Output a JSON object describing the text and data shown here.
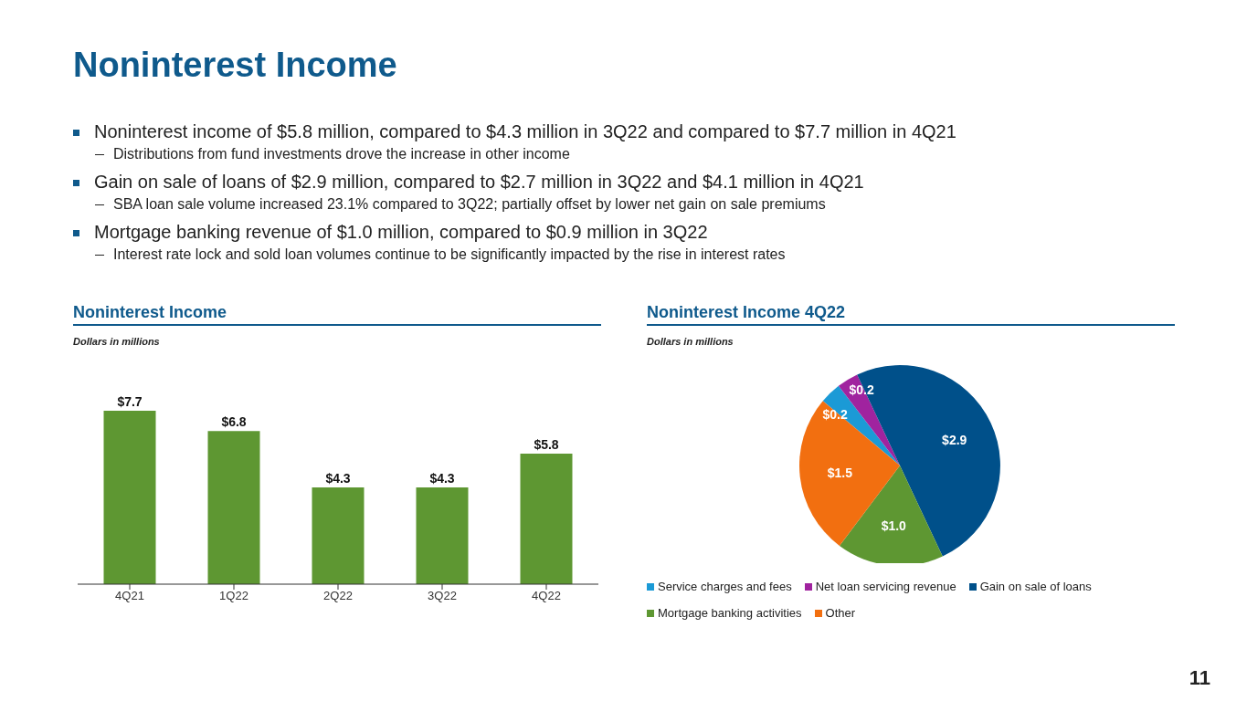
{
  "chart_data": [
    {
      "type": "other",
      "title": "Noninterest Income",
      "annotations": [
        "Noninterest income of $5.8 million, compared to $4.3 million in 3Q22 and compared to $7.7 million in 4Q21",
        "Distributions from fund investments drove the increase in other income",
        "Gain on sale of loans of $2.9 million, compared to $2.7 million in 3Q22 and $4.1 million in 4Q21",
        "SBA loan sale volume increased 23.1% compared to 3Q22; partially offset by lower net gain on sale premiums",
        "Mortgage banking revenue of $1.0 million, compared to $0.9 million in 3Q22",
        "Interest rate lock and sold loan volumes continue to be significantly impacted by the rise in interest rates",
        "11"
      ]
    },
    {
      "type": "bar",
      "title": "Noninterest Income",
      "subtitle": "Dollars in millions",
      "categories": [
        "4Q21",
        "1Q22",
        "2Q22",
        "3Q22",
        "4Q22"
      ],
      "values": [
        7.7,
        6.8,
        4.3,
        4.3,
        5.8
      ],
      "color": "#5e9732",
      "value_labels": [
        "$7.7",
        "$6.8",
        "$4.3",
        "$4.3",
        "$5.8"
      ]
    },
    {
      "type": "pie",
      "title": "Noninterest Income 4Q22",
      "subtitle": "Dollars in millions",
      "categories": [
        "Service charges and fees",
        "Net loan servicing revenue",
        "Gain on sale of loans",
        "Mortgage banking activities",
        "Other"
      ],
      "values": [
        0.2,
        0.2,
        2.9,
        1.0,
        1.5
      ],
      "colors": [
        "#1b9ad6",
        "#a0239f",
        "#00508a",
        "#5e9732",
        "#f26f10"
      ],
      "value_labels": [
        "$0.2",
        "$0.2",
        "$2.9",
        "$1.0",
        "$1.5"
      ],
      "legend": "bottom"
    }
  ]
}
